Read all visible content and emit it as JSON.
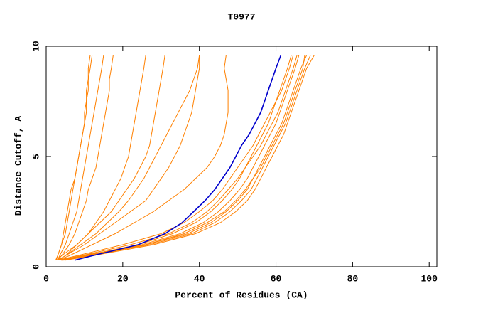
{
  "chart_data": {
    "type": "line",
    "title": "T0977",
    "xlabel": "Percent of Residues (CA)",
    "ylabel": "Distance Cutoff, A",
    "xlim": [
      0,
      102
    ],
    "ylim": [
      0,
      10
    ],
    "xticks": [
      0,
      20,
      40,
      60,
      80,
      100
    ],
    "yticks": [
      0,
      5,
      10
    ],
    "y": [
      0.3,
      0.5,
      1,
      1.5,
      2,
      2.5,
      3,
      3.5,
      4,
      4.5,
      5,
      5.5,
      6,
      6.5,
      7,
      7.5,
      8,
      8.5,
      9,
      9.6
    ],
    "series": [
      {
        "color": "#ff8000",
        "x": [
          4,
          10,
          24,
          33,
          39,
          43,
          46,
          48.5,
          50.5,
          52,
          53.5,
          55,
          56.5,
          58,
          59,
          60,
          61,
          62,
          63,
          64
        ]
      },
      {
        "color": "#ff8000",
        "x": [
          4,
          11,
          25,
          35,
          41,
          45,
          48,
          50.5,
          52.5,
          54,
          55.5,
          57,
          58.5,
          60,
          61,
          62,
          63,
          64,
          65,
          66
        ]
      },
      {
        "color": "#ff8000",
        "x": [
          3.5,
          9,
          26,
          37,
          43,
          47,
          50,
          52.5,
          54,
          55.5,
          57,
          58.5,
          60,
          61.5,
          62.5,
          63.5,
          64.5,
          65.5,
          66.5,
          68
        ]
      },
      {
        "color": "#ff8000",
        "x": [
          4,
          10,
          27,
          38,
          44,
          48,
          51,
          53.5,
          55,
          56.5,
          58,
          59.5,
          61,
          62.5,
          63.5,
          64.5,
          65.5,
          66.5,
          67.5,
          69
        ]
      },
      {
        "color": "#ff8000",
        "x": [
          4.5,
          12,
          28,
          39,
          45.5,
          49.5,
          52.5,
          54.5,
          56,
          57.5,
          59,
          60.5,
          62,
          63,
          64,
          65,
          66,
          67,
          68,
          70
        ]
      },
      {
        "color": "#ff8000",
        "x": [
          3,
          8,
          20,
          30,
          36,
          40,
          43.5,
          46,
          48,
          50,
          52,
          54,
          55.5,
          57,
          58.5,
          60,
          61.5,
          62.5,
          63.5,
          64.5
        ]
      },
      {
        "color": "#ff8000",
        "x": [
          5,
          12,
          26,
          36,
          42,
          46.5,
          49.5,
          52,
          54,
          56,
          57.5,
          59,
          60.5,
          62,
          63,
          64,
          65,
          66,
          67,
          67.5
        ]
      },
      {
        "color": "#ff8000",
        "x": [
          4,
          9,
          22,
          32,
          38,
          42,
          45,
          47.5,
          50,
          52,
          54,
          56,
          57.5,
          59,
          60.5,
          61.5,
          62.5,
          63.5,
          64.5,
          65.5
        ]
      },
      {
        "color": "#ff8000",
        "x": [
          3,
          6,
          12,
          18,
          23,
          28,
          32,
          36,
          39,
          42,
          44,
          45.5,
          46.5,
          47,
          47.5,
          47.5,
          47.5,
          47,
          46.5,
          47
        ]
      },
      {
        "color": "#ff8000",
        "x": [
          3,
          5,
          10,
          14,
          18,
          22,
          26,
          28,
          30,
          32,
          33.5,
          35,
          36,
          37,
          38,
          38.5,
          39,
          39.5,
          40,
          40
        ]
      },
      {
        "color": "#ff8000",
        "x": [
          2.5,
          4,
          8,
          11,
          14,
          17,
          19,
          21,
          23,
          24.5,
          26,
          27,
          27.5,
          28,
          28.5,
          29,
          29.5,
          30,
          30.5,
          31
        ]
      },
      {
        "color": "#ff8000",
        "x": [
          3,
          5,
          9,
          13,
          16,
          19,
          21.5,
          23.5,
          25.5,
          27,
          28.5,
          30,
          31.5,
          33,
          34.5,
          36,
          37.5,
          38.5,
          39.5,
          40
        ]
      },
      {
        "color": "#ff8000",
        "x": [
          3,
          5,
          8,
          11,
          13,
          15,
          16.5,
          18,
          19.5,
          20.5,
          21.5,
          22,
          22.5,
          23,
          23.5,
          24,
          24.5,
          25,
          25.5,
          26
        ]
      },
      {
        "color": "#ff8000",
        "x": [
          2.5,
          3,
          4,
          5,
          5.5,
          6,
          6.5,
          7,
          7.5,
          8,
          8.5,
          9,
          9.5,
          10,
          10.5,
          10.5,
          11,
          11,
          11.5,
          12
        ]
      },
      {
        "color": "#ff8000",
        "x": [
          3,
          3.5,
          5,
          6,
          7,
          8,
          8.5,
          9,
          9.5,
          10,
          10.5,
          11,
          11.5,
          12,
          12.5,
          13,
          13.5,
          14,
          14.5,
          15
        ]
      },
      {
        "color": "#ff8000",
        "x": [
          2.5,
          3,
          4,
          4.5,
          5,
          5.5,
          6,
          6.5,
          7.5,
          8,
          8.5,
          9,
          9.5,
          10,
          10,
          10.5,
          10.5,
          11,
          11,
          11.5
        ]
      },
      {
        "color": "#ff8000",
        "x": [
          3,
          4,
          6,
          7.5,
          8.5,
          9.5,
          10.5,
          11,
          12,
          13,
          13.5,
          14,
          14.5,
          15,
          15.5,
          16,
          16.5,
          16.5,
          17,
          17.5
        ]
      },
      {
        "color": "#0000cc",
        "x": [
          7.5,
          12,
          24,
          31,
          35.5,
          38.5,
          41.5,
          44,
          46,
          48,
          49.5,
          51,
          53,
          54.5,
          56,
          57,
          58,
          59,
          60,
          61.3
        ]
      }
    ]
  }
}
